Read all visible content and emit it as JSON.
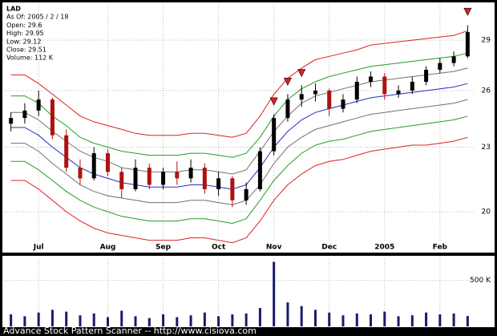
{
  "chart_data": [
    {
      "type": "candlestick",
      "annotations": [
        "LAD",
        "As Of: 2005 / 2 / 18",
        "Open: 29.6",
        "High: 29.95",
        "Low: 29.12",
        "Close: 29.51",
        "Volume: 112 K"
      ],
      "categories": [
        null,
        null,
        "Jul",
        null,
        null,
        null,
        null,
        "Aug",
        null,
        null,
        null,
        "Sep",
        null,
        null,
        null,
        "Oct",
        null,
        null,
        null,
        "Nov",
        null,
        null,
        null,
        "Dec",
        null,
        null,
        null,
        "2005",
        null,
        null,
        null,
        "Feb",
        null,
        null
      ],
      "open": [
        24.2,
        24.5,
        24.9,
        25.5,
        23.6,
        22.0,
        21.5,
        22.7,
        21.8,
        21.0,
        22.0,
        21.2,
        21.8,
        21.5,
        22.0,
        21.0,
        21.5,
        20.5,
        21.0,
        22.8,
        24.5,
        25.5,
        25.8,
        26.0,
        25.0,
        25.5,
        26.5,
        26.8,
        25.8,
        26.0,
        26.5,
        27.2,
        27.6,
        28.0
      ],
      "high": [
        24.8,
        25.3,
        26.0,
        25.6,
        23.9,
        22.4,
        23.0,
        22.9,
        22.0,
        22.4,
        22.2,
        22.0,
        22.3,
        22.4,
        22.2,
        21.8,
        21.6,
        21.3,
        23.0,
        24.7,
        25.8,
        26.3,
        26.4,
        26.1,
        25.8,
        26.8,
        27.1,
        27.0,
        26.3,
        26.8,
        27.4,
        27.9,
        28.3,
        29.95
      ],
      "low": [
        23.8,
        24.2,
        24.6,
        23.4,
        21.8,
        21.2,
        21.4,
        21.6,
        20.6,
        20.9,
        21.0,
        21.0,
        21.2,
        21.3,
        20.8,
        20.7,
        20.2,
        20.3,
        20.9,
        22.6,
        24.3,
        25.1,
        25.4,
        24.6,
        24.8,
        25.3,
        26.2,
        25.5,
        25.6,
        25.8,
        26.3,
        27.0,
        27.4,
        27.9
      ],
      "close": [
        24.5,
        24.9,
        25.5,
        23.6,
        22.0,
        21.5,
        22.7,
        21.8,
        21.0,
        22.0,
        21.2,
        21.8,
        21.5,
        22.0,
        21.0,
        21.5,
        20.5,
        21.0,
        22.8,
        24.5,
        25.5,
        25.8,
        26.0,
        25.0,
        25.5,
        26.5,
        26.8,
        25.8,
        26.0,
        26.5,
        27.2,
        27.6,
        28.0,
        29.51
      ],
      "up_color": "#000000",
      "down_color": "#b01010",
      "signals": [
        null,
        null,
        null,
        null,
        null,
        null,
        null,
        null,
        null,
        null,
        null,
        null,
        null,
        null,
        null,
        null,
        null,
        null,
        null,
        25.2,
        26.3,
        26.8,
        null,
        null,
        null,
        null,
        null,
        null,
        null,
        null,
        null,
        null,
        null,
        30.6
      ],
      "signal_color": "#e02020",
      "series": [
        {
          "color": "#e02020",
          "values": [
            26.9,
            26.9,
            26.4,
            25.8,
            25.2,
            24.6,
            24.3,
            24.1,
            23.9,
            23.7,
            23.6,
            23.6,
            23.6,
            23.7,
            23.7,
            23.6,
            23.5,
            23.7,
            24.6,
            25.8,
            26.7,
            27.3,
            27.8,
            28.0,
            28.2,
            28.4,
            28.7,
            28.8,
            28.9,
            29.0,
            29.1,
            29.2,
            29.3,
            29.6
          ]
        },
        {
          "color": "#20a020",
          "values": [
            25.7,
            25.7,
            25.3,
            24.6,
            24.1,
            23.5,
            23.2,
            23.0,
            22.8,
            22.7,
            22.6,
            22.6,
            22.6,
            22.7,
            22.7,
            22.6,
            22.5,
            22.7,
            23.5,
            24.6,
            25.5,
            26.1,
            26.5,
            26.8,
            27.0,
            27.2,
            27.4,
            27.5,
            27.6,
            27.7,
            27.8,
            27.9,
            28.0,
            28.2
          ]
        },
        {
          "color": "#707070",
          "values": [
            24.8,
            24.8,
            24.4,
            23.8,
            23.3,
            22.8,
            22.5,
            22.3,
            22.0,
            21.9,
            21.8,
            21.8,
            21.8,
            21.9,
            21.9,
            21.8,
            21.7,
            21.9,
            22.8,
            23.8,
            24.6,
            25.3,
            25.7,
            25.9,
            26.1,
            26.3,
            26.5,
            26.6,
            26.7,
            26.8,
            26.9,
            27.0,
            27.1,
            27.3
          ]
        },
        {
          "color": "#2030c0",
          "values": [
            24.0,
            24.0,
            23.6,
            23.0,
            22.5,
            22.0,
            21.7,
            21.5,
            21.3,
            21.2,
            21.1,
            21.1,
            21.1,
            21.2,
            21.2,
            21.1,
            21.0,
            21.2,
            22.0,
            23.0,
            23.8,
            24.4,
            24.8,
            25.0,
            25.2,
            25.4,
            25.6,
            25.7,
            25.8,
            25.9,
            26.0,
            26.1,
            26.2,
            26.4
          ]
        },
        {
          "color": "#707070",
          "values": [
            23.2,
            23.2,
            22.8,
            22.2,
            21.7,
            21.2,
            20.9,
            20.7,
            20.6,
            20.5,
            20.4,
            20.4,
            20.4,
            20.5,
            20.5,
            20.4,
            20.3,
            20.5,
            21.2,
            22.2,
            23.0,
            23.5,
            23.9,
            24.1,
            24.3,
            24.5,
            24.7,
            24.8,
            24.9,
            25.0,
            25.1,
            25.2,
            25.3,
            25.5
          ]
        },
        {
          "color": "#20a020",
          "values": [
            22.3,
            22.3,
            21.9,
            21.4,
            20.9,
            20.5,
            20.2,
            20.0,
            19.8,
            19.7,
            19.6,
            19.6,
            19.6,
            19.7,
            19.7,
            19.6,
            19.5,
            19.7,
            20.5,
            21.4,
            22.1,
            22.7,
            23.1,
            23.3,
            23.4,
            23.6,
            23.8,
            23.9,
            24.0,
            24.1,
            24.2,
            24.3,
            24.4,
            24.6
          ]
        },
        {
          "color": "#e02020",
          "values": [
            21.4,
            21.4,
            21.0,
            20.5,
            20.0,
            19.6,
            19.3,
            19.1,
            19.0,
            18.9,
            18.8,
            18.8,
            18.8,
            18.9,
            18.9,
            18.8,
            18.7,
            18.9,
            19.6,
            20.5,
            21.2,
            21.7,
            22.1,
            22.3,
            22.4,
            22.6,
            22.8,
            22.9,
            23.0,
            23.1,
            23.1,
            23.2,
            23.3,
            23.5
          ]
        }
      ],
      "ylim": [
        18.4,
        31.2
      ],
      "yticks": [
        20,
        23,
        26,
        29
      ],
      "log_scale": true,
      "grid": true
    },
    {
      "type": "bar",
      "values": [
        130000,
        110000,
        150000,
        180000,
        160000,
        120000,
        140000,
        100000,
        170000,
        110000,
        90000,
        130000,
        100000,
        120000,
        150000,
        110000,
        130000,
        140000,
        200000,
        700000,
        260000,
        220000,
        180000,
        150000,
        120000,
        140000,
        130000,
        160000,
        110000,
        120000,
        150000,
        130000,
        140000,
        112000
      ],
      "color": "#1a1a6e",
      "ylim": [
        0,
        740000
      ],
      "yticks": [
        {
          "value": 500000,
          "label": "500 K"
        }
      ],
      "grid": true
    }
  ],
  "footer": "Advance Stock Pattern Scanner -- http://www.cisiova.com"
}
